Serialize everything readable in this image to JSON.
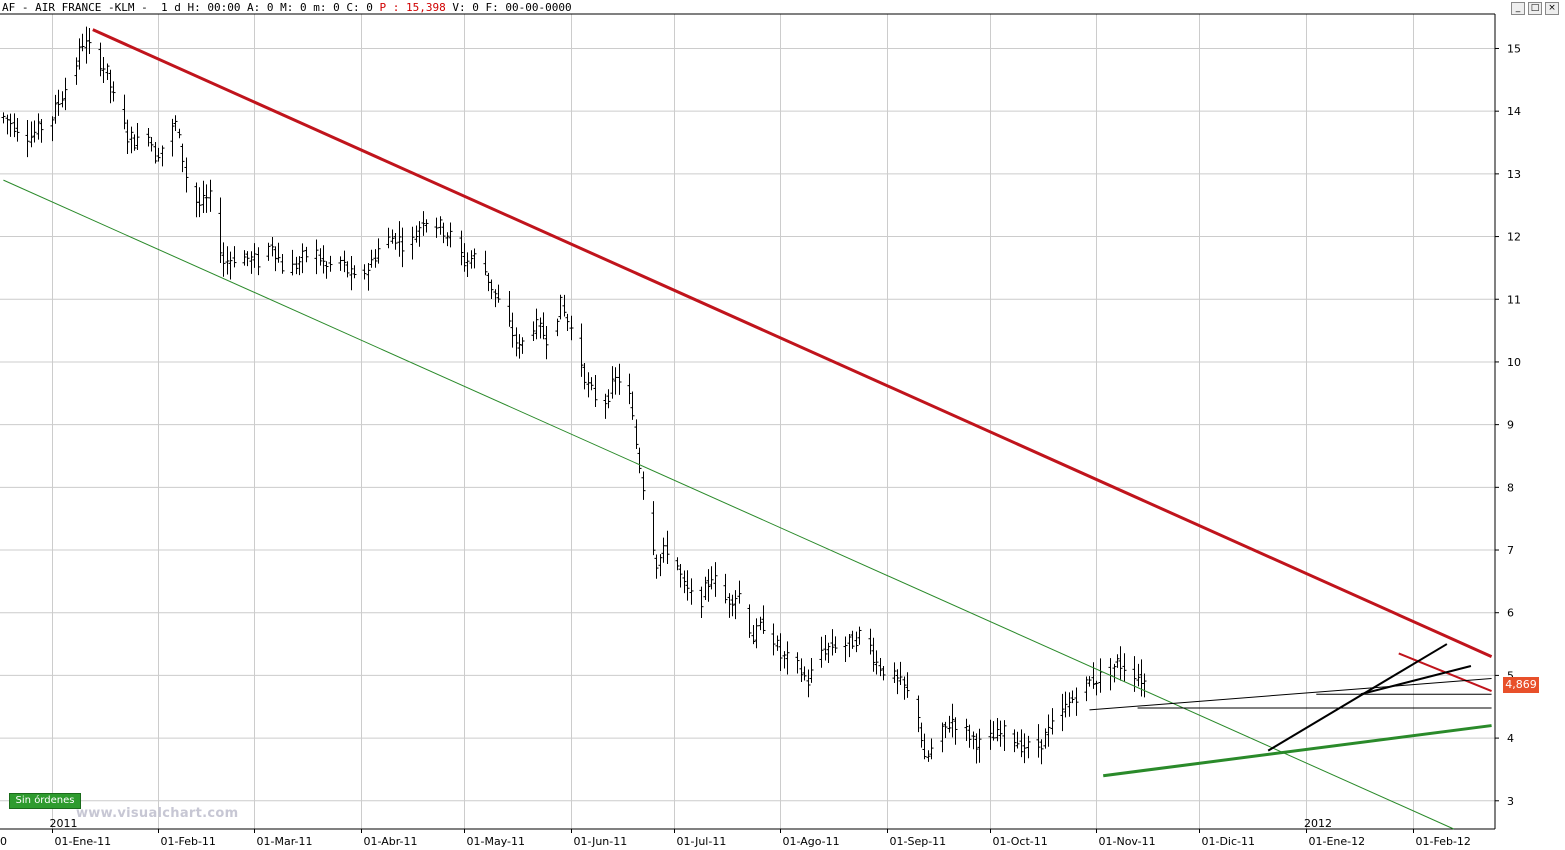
{
  "header": {
    "symbol": "AF",
    "name": "AIR FRANCE -KLM",
    "fields_a": "1 d H: 00:00 A: 0 M: 0 m: 0 C: 0",
    "field_p": "P : 15,398",
    "fields_b": "V: 0 F: 00-00-0000"
  },
  "window_buttons": [
    "_",
    "□",
    "×"
  ],
  "badge": "Sin órdenes",
  "watermark": "www.visualchart.com",
  "last_price_tag": "4,869",
  "colors": {
    "red_trend": "#c0141c",
    "green_trend": "#2a8a2a",
    "bars": "#000000",
    "grid": "#cccccc",
    "tag": "#e8502a"
  },
  "chart_data": {
    "type": "ohlc-bar",
    "title": "AIR FRANCE -KLM",
    "y_ticks": [
      3,
      4,
      5,
      6,
      7,
      8,
      9,
      10,
      11,
      12,
      13,
      14,
      15
    ],
    "ylim": [
      2.55,
      15.55
    ],
    "x_ticks": [
      "01-Ene-11",
      "01-Feb-11",
      "01-Mar-11",
      "01-Abr-11",
      "01-May-11",
      "01-Jun-11",
      "01-Jul-11",
      "01-Ago-11",
      "01-Sep-11",
      "01-Oct-11",
      "01-Nov-11",
      "01-Dic-11",
      "01-Ene-12",
      "01-Feb-12"
    ],
    "x_tick_days": [
      0,
      31,
      59,
      90,
      120,
      151,
      181,
      212,
      243,
      273,
      304,
      334,
      365,
      396
    ],
    "year_labels": [
      {
        "text": "2011",
        "day": 0
      },
      {
        "text": "2012",
        "day": 365
      }
    ],
    "left_edge_label": "0",
    "xlim_days": [
      -15,
      420
    ],
    "anchors": [
      [
        -14,
        13.9
      ],
      [
        -6,
        13.6
      ],
      [
        0,
        13.9
      ],
      [
        6,
        14.6
      ],
      [
        9,
        15.1
      ],
      [
        13,
        14.9
      ],
      [
        16,
        14.6
      ],
      [
        19,
        14.0
      ],
      [
        22,
        13.6
      ],
      [
        25,
        13.5
      ],
      [
        27,
        13.9
      ],
      [
        30,
        13.3
      ],
      [
        33,
        13.5
      ],
      [
        36,
        13.8
      ],
      [
        40,
        12.7
      ],
      [
        43,
        12.5
      ],
      [
        46,
        12.6
      ],
      [
        50,
        11.6
      ],
      [
        54,
        11.7
      ],
      [
        60,
        11.6
      ],
      [
        64,
        11.9
      ],
      [
        68,
        11.4
      ],
      [
        72,
        11.6
      ],
      [
        76,
        11.8
      ],
      [
        80,
        11.5
      ],
      [
        84,
        11.6
      ],
      [
        88,
        11.3
      ],
      [
        92,
        11.5
      ],
      [
        96,
        11.9
      ],
      [
        100,
        12.0
      ],
      [
        104,
        11.8
      ],
      [
        108,
        12.3
      ],
      [
        112,
        12.2
      ],
      [
        116,
        12.0
      ],
      [
        120,
        11.6
      ],
      [
        124,
        11.7
      ],
      [
        128,
        11.2
      ],
      [
        132,
        10.7
      ],
      [
        136,
        10.2
      ],
      [
        140,
        10.6
      ],
      [
        144,
        10.4
      ],
      [
        148,
        10.9
      ],
      [
        152,
        10.4
      ],
      [
        156,
        9.6
      ],
      [
        160,
        9.3
      ],
      [
        164,
        9.7
      ],
      [
        167,
        9.8
      ],
      [
        170,
        8.7
      ],
      [
        173,
        7.7
      ],
      [
        176,
        6.8
      ],
      [
        180,
        7.1
      ],
      [
        184,
        6.4
      ],
      [
        188,
        6.1
      ],
      [
        192,
        6.6
      ],
      [
        196,
        6.2
      ],
      [
        200,
        6.3
      ],
      [
        204,
        5.6
      ],
      [
        208,
        5.9
      ],
      [
        212,
        5.3
      ],
      [
        216,
        5.2
      ],
      [
        220,
        4.9
      ],
      [
        224,
        5.4
      ],
      [
        228,
        5.5
      ],
      [
        232,
        5.5
      ],
      [
        236,
        5.7
      ],
      [
        240,
        5.2
      ],
      [
        244,
        5.0
      ],
      [
        248,
        4.8
      ],
      [
        252,
        4.4
      ],
      [
        254,
        3.6
      ],
      [
        258,
        4.0
      ],
      [
        262,
        4.3
      ],
      [
        266,
        4.1
      ],
      [
        270,
        3.9
      ],
      [
        274,
        4.0
      ],
      [
        278,
        4.1
      ],
      [
        282,
        3.9
      ],
      [
        286,
        3.8
      ],
      [
        290,
        4.1
      ],
      [
        294,
        4.4
      ],
      [
        298,
        4.7
      ],
      [
        302,
        4.9
      ],
      [
        306,
        5.0
      ],
      [
        310,
        5.2
      ],
      [
        314,
        5.1
      ],
      [
        318,
        4.9
      ]
    ],
    "seed": 7,
    "trendlines": [
      {
        "name": "upper-red-channel",
        "color": "#c0141c",
        "width": 3,
        "from": [
          12,
          15.3
        ],
        "to": [
          419,
          5.3
        ]
      },
      {
        "name": "short-red",
        "color": "#c0141c",
        "width": 2,
        "from": [
          392,
          5.35
        ],
        "to": [
          419,
          4.75
        ]
      },
      {
        "name": "lower-green-channel",
        "color": "#2a8a2a",
        "width": 1,
        "from": [
          -14,
          12.9
        ],
        "to": [
          408,
          2.55
        ]
      },
      {
        "name": "bottom-green-support",
        "color": "#2a8a2a",
        "width": 3,
        "from": [
          306,
          3.4
        ],
        "to": [
          419,
          4.2
        ]
      },
      {
        "name": "rising-black-thin",
        "color": "#000000",
        "width": 1,
        "from": [
          302,
          4.45
        ],
        "to": [
          419,
          4.95
        ]
      },
      {
        "name": "rising-black-steep",
        "color": "#000000",
        "width": 2,
        "from": [
          354,
          3.8
        ],
        "to": [
          406,
          5.5
        ]
      },
      {
        "name": "black-short",
        "color": "#000000",
        "width": 2,
        "from": [
          381,
          4.7
        ],
        "to": [
          413,
          5.15
        ]
      },
      {
        "name": "horizontal-black",
        "color": "#000000",
        "width": 1,
        "from": [
          316,
          4.48
        ],
        "to": [
          419,
          4.48
        ]
      },
      {
        "name": "horizontal-black-short",
        "color": "#000000",
        "width": 1,
        "from": [
          368,
          4.7
        ],
        "to": [
          419,
          4.7
        ]
      }
    ]
  }
}
